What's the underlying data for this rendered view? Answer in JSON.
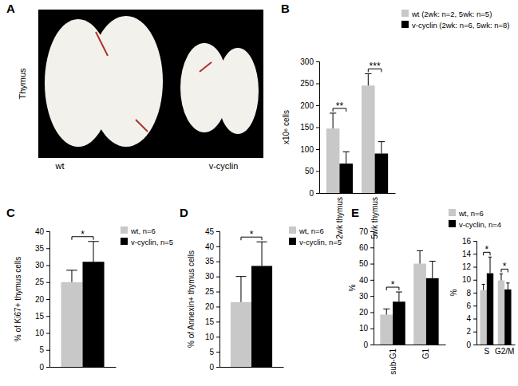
{
  "chart_data": [
    {
      "type": "image",
      "panel": "A",
      "title": "Thymus",
      "labels": [
        "wt",
        "v-cyclin"
      ]
    },
    {
      "type": "bar",
      "panel": "B",
      "y_label": "x10⁶ cells",
      "categories": [
        "2wk thymus",
        "5wk thymus"
      ],
      "series": [
        {
          "name": "wt (2wk: n=2, 5wk: n=5)",
          "color": "#c8c8c8",
          "values": [
            147,
            245
          ],
          "errors": [
            35,
            27
          ]
        },
        {
          "name": "v-cyclin (2wk: n=6, 5wk: n=8)",
          "color": "#000000",
          "values": [
            67,
            90
          ],
          "errors": [
            27,
            27
          ]
        }
      ],
      "ylim": [
        0,
        300
      ],
      "yticks": [
        0,
        50,
        100,
        150,
        200,
        250,
        300
      ],
      "annotations": [
        "**",
        "***"
      ],
      "legend": "right"
    },
    {
      "type": "bar",
      "panel": "C",
      "y_label": "% of Ki67+ thymus cells",
      "categories": [
        null
      ],
      "series": [
        {
          "name": "wt, n=6",
          "color": "#c8c8c8",
          "values": [
            25
          ],
          "errors": [
            3.5
          ]
        },
        {
          "name": "v-cyclin, n=5",
          "color": "#000000",
          "values": [
            31
          ],
          "errors": [
            6
          ]
        }
      ],
      "ylim": [
        0,
        40
      ],
      "yticks": [
        0,
        5,
        10,
        15,
        20,
        25,
        30,
        35,
        40
      ],
      "annotations": [
        "*"
      ],
      "legend": "right"
    },
    {
      "type": "bar",
      "panel": "D",
      "y_label": "% of Annexin+ thymus cells",
      "categories": [
        null
      ],
      "series": [
        {
          "name": "wt, n=6",
          "color": "#c8c8c8",
          "values": [
            21.5
          ],
          "errors": [
            8.5
          ]
        },
        {
          "name": "v-cyclin, n=5",
          "color": "#000000",
          "values": [
            33.5
          ],
          "errors": [
            8
          ]
        }
      ],
      "ylim": [
        0,
        45
      ],
      "yticks": [
        0,
        5,
        10,
        15,
        20,
        25,
        30,
        35,
        40,
        45
      ],
      "annotations": [
        "*"
      ],
      "legend": "right"
    },
    {
      "type": "bar",
      "panel": "E",
      "y_label": "%",
      "categories": [
        "sub-G1",
        "G1"
      ],
      "series": [
        {
          "color": "#c8c8c8",
          "values": [
            18.5,
            50
          ],
          "errors": [
            3.5,
            8
          ]
        },
        {
          "color": "#000000",
          "values": [
            26.5,
            41
          ],
          "errors": [
            6,
            10.5
          ]
        }
      ],
      "ylim": [
        0,
        70
      ],
      "yticks": [
        0,
        10,
        20,
        30,
        40,
        50,
        60,
        70
      ],
      "annotations": [
        "*",
        null
      ]
    },
    {
      "type": "bar",
      "y_label": "%",
      "categories": [
        "S",
        "G2/M"
      ],
      "series": [
        {
          "name": "wt, n=6",
          "color": "#c8c8c8",
          "values": [
            8.4,
            9.9
          ],
          "errors": [
            0.9,
            1.0
          ]
        },
        {
          "name": "v-cyclin, n=4",
          "color": "#000000",
          "values": [
            11,
            8.5
          ],
          "errors": [
            2.5,
            1.0
          ]
        }
      ],
      "ylim": [
        0,
        16
      ],
      "yticks": [
        0,
        2,
        4,
        6,
        8,
        10,
        12,
        14,
        16
      ],
      "annotations": [
        "*",
        "*"
      ],
      "legend": "right"
    }
  ]
}
